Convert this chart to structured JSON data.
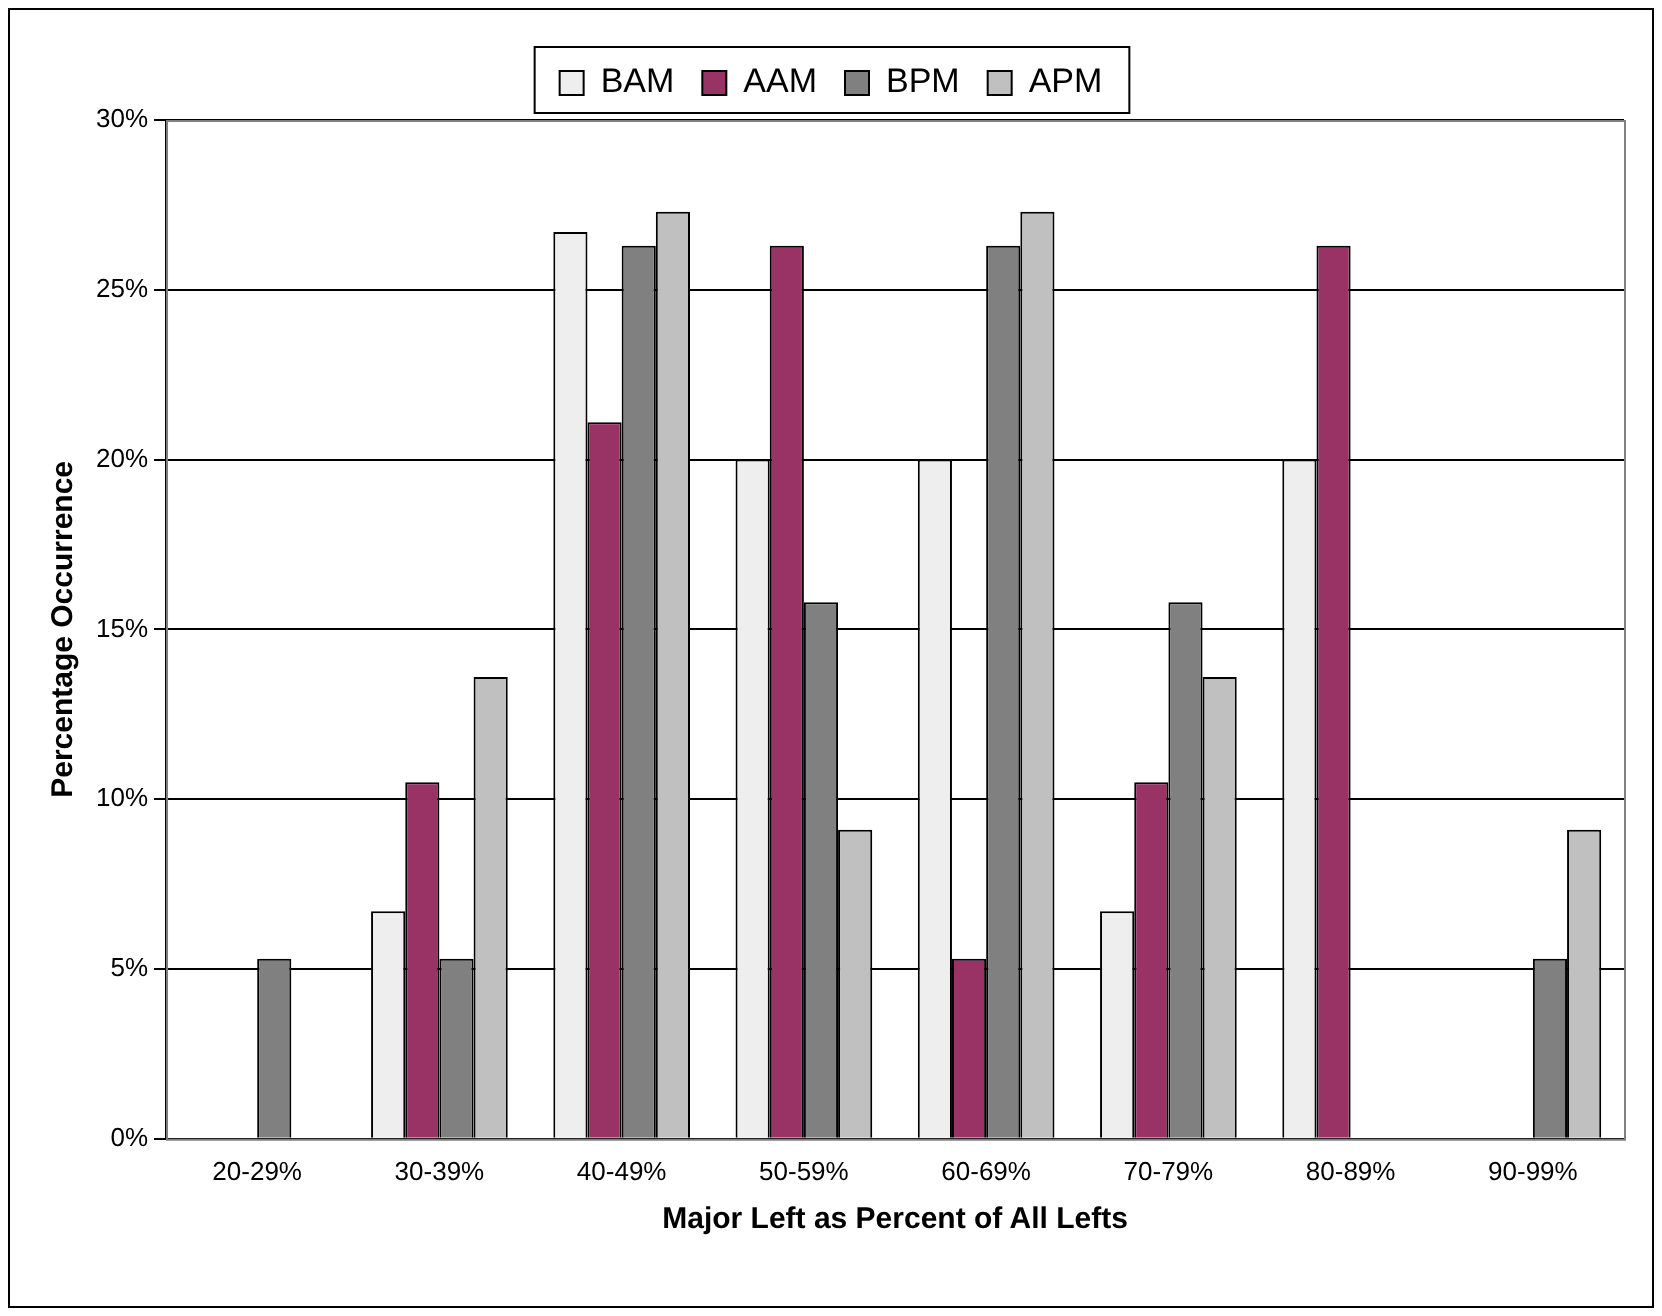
{
  "chart_data": {
    "type": "bar",
    "xlabel": "Major Left as Percent of All Lefts",
    "ylabel": "Percentage Occurrence",
    "categories": [
      "20-29%",
      "30-39%",
      "40-49%",
      "50-59%",
      "60-69%",
      "70-79%",
      "80-89%",
      "90-99%"
    ],
    "series": [
      {
        "name": "BAM",
        "color": "#eeeeee",
        "values": [
          0,
          6.7,
          26.7,
          20,
          20,
          6.7,
          20,
          0
        ]
      },
      {
        "name": "AAM",
        "color": "#993366",
        "values": [
          0,
          10.5,
          21.1,
          26.3,
          5.3,
          10.5,
          26.3,
          0
        ]
      },
      {
        "name": "BPM",
        "color": "#808080",
        "values": [
          5.3,
          5.3,
          26.3,
          15.8,
          26.3,
          15.8,
          0,
          5.3
        ]
      },
      {
        "name": "APM",
        "color": "#c0c0c0",
        "values": [
          0,
          13.6,
          27.3,
          9.1,
          27.3,
          13.6,
          0,
          9.1
        ]
      }
    ],
    "ylim": [
      0,
      30
    ],
    "yticks": [
      {
        "value": 0,
        "label": "0%"
      },
      {
        "value": 5,
        "label": "5%"
      },
      {
        "value": 10,
        "label": "10%"
      },
      {
        "value": 15,
        "label": "15%"
      },
      {
        "value": 20,
        "label": "20%"
      },
      {
        "value": 25,
        "label": "25%"
      },
      {
        "value": 30,
        "label": "30%"
      }
    ],
    "grid": "y",
    "legend": "top"
  }
}
